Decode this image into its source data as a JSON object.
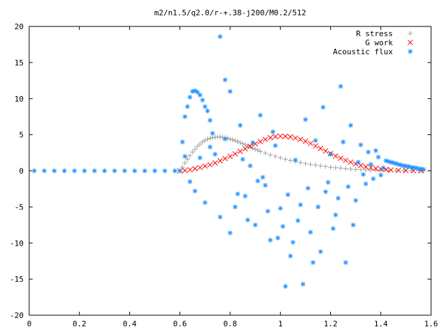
{
  "chart_data": {
    "type": "scatter",
    "title": "m2/n1.5/q2.0/r-+.38-j200/M0.2/512",
    "xlim": [
      0,
      1.6
    ],
    "ylim": [
      -20,
      20
    ],
    "x_ticks": [
      0,
      0.2,
      0.4,
      0.6,
      0.8,
      1,
      1.2,
      1.4,
      1.6
    ],
    "y_ticks": [
      -20,
      -15,
      -10,
      -5,
      0,
      5,
      10,
      15,
      20
    ],
    "grid": false,
    "legend_position": "top-right",
    "series": [
      {
        "name": "R stress",
        "marker": "plus",
        "color": "#a0a0a0",
        "points": [
          [
            0.61,
            0.5
          ],
          [
            0.62,
            1.1
          ],
          [
            0.63,
            1.6
          ],
          [
            0.64,
            2.1
          ],
          [
            0.65,
            2.6
          ],
          [
            0.66,
            3.0
          ],
          [
            0.67,
            3.4
          ],
          [
            0.68,
            3.7
          ],
          [
            0.69,
            4.0
          ],
          [
            0.7,
            4.2
          ],
          [
            0.71,
            4.4
          ],
          [
            0.72,
            4.5
          ],
          [
            0.73,
            4.6
          ],
          [
            0.74,
            4.65
          ],
          [
            0.75,
            4.7
          ],
          [
            0.76,
            4.7
          ],
          [
            0.77,
            4.65
          ],
          [
            0.78,
            4.6
          ],
          [
            0.79,
            4.5
          ],
          [
            0.8,
            4.4
          ],
          [
            0.81,
            4.3
          ],
          [
            0.82,
            4.2
          ],
          [
            0.83,
            4.05
          ],
          [
            0.84,
            3.9
          ],
          [
            0.85,
            3.75
          ],
          [
            0.86,
            3.6
          ],
          [
            0.87,
            3.45
          ],
          [
            0.88,
            3.3
          ],
          [
            0.89,
            3.15
          ],
          [
            0.9,
            3.0
          ],
          [
            0.91,
            2.85
          ],
          [
            0.92,
            2.7
          ],
          [
            0.94,
            2.45
          ],
          [
            0.96,
            2.2
          ],
          [
            0.98,
            2.0
          ],
          [
            1.0,
            1.8
          ],
          [
            1.02,
            1.6
          ],
          [
            1.04,
            1.45
          ],
          [
            1.06,
            1.3
          ],
          [
            1.08,
            1.15
          ],
          [
            1.1,
            1.0
          ],
          [
            1.12,
            0.9
          ],
          [
            1.14,
            0.8
          ],
          [
            1.16,
            0.7
          ],
          [
            1.18,
            0.6
          ],
          [
            1.2,
            0.5
          ],
          [
            1.22,
            0.43
          ],
          [
            1.24,
            0.37
          ],
          [
            1.26,
            0.3
          ],
          [
            1.28,
            0.25
          ],
          [
            1.3,
            0.2
          ],
          [
            1.32,
            0.17
          ],
          [
            1.34,
            0.13
          ],
          [
            1.36,
            0.1
          ],
          [
            1.38,
            0.08
          ],
          [
            1.4,
            0.06
          ],
          [
            1.43,
            0.04
          ],
          [
            1.46,
            0.03
          ],
          [
            1.49,
            0.02
          ],
          [
            1.52,
            0.01
          ],
          [
            1.55,
            0.01
          ],
          [
            1.57,
            0
          ]
        ]
      },
      {
        "name": "G work",
        "marker": "cross",
        "color": "#ff0000",
        "points": [
          [
            0.6,
            0
          ],
          [
            0.62,
            0.05
          ],
          [
            0.64,
            0.15
          ],
          [
            0.66,
            0.3
          ],
          [
            0.68,
            0.45
          ],
          [
            0.7,
            0.65
          ],
          [
            0.72,
            0.85
          ],
          [
            0.74,
            1.1
          ],
          [
            0.76,
            1.4
          ],
          [
            0.78,
            1.7
          ],
          [
            0.8,
            2.0
          ],
          [
            0.82,
            2.35
          ],
          [
            0.84,
            2.7
          ],
          [
            0.86,
            3.05
          ],
          [
            0.88,
            3.4
          ],
          [
            0.9,
            3.75
          ],
          [
            0.92,
            4.05
          ],
          [
            0.94,
            4.35
          ],
          [
            0.96,
            4.6
          ],
          [
            0.98,
            4.75
          ],
          [
            1.0,
            4.8
          ],
          [
            1.02,
            4.78
          ],
          [
            1.04,
            4.7
          ],
          [
            1.06,
            4.55
          ],
          [
            1.08,
            4.35
          ],
          [
            1.1,
            4.1
          ],
          [
            1.12,
            3.8
          ],
          [
            1.14,
            3.45
          ],
          [
            1.16,
            3.1
          ],
          [
            1.18,
            2.75
          ],
          [
            1.2,
            2.4
          ],
          [
            1.22,
            2.05
          ],
          [
            1.24,
            1.75
          ],
          [
            1.26,
            1.45
          ],
          [
            1.28,
            1.2
          ],
          [
            1.3,
            0.95
          ],
          [
            1.32,
            0.75
          ],
          [
            1.34,
            0.58
          ],
          [
            1.36,
            0.45
          ],
          [
            1.38,
            0.35
          ],
          [
            1.4,
            0.25
          ],
          [
            1.42,
            0.18
          ],
          [
            1.44,
            0.12
          ],
          [
            1.47,
            0.07
          ],
          [
            1.5,
            0.04
          ],
          [
            1.53,
            0.02
          ],
          [
            1.56,
            0.01
          ]
        ]
      },
      {
        "name": "Acoustic flux",
        "marker": "star",
        "color": "#1e90ff",
        "points": [
          [
            0.02,
            0
          ],
          [
            0.06,
            0
          ],
          [
            0.1,
            0
          ],
          [
            0.14,
            0
          ],
          [
            0.18,
            0
          ],
          [
            0.22,
            0
          ],
          [
            0.26,
            0
          ],
          [
            0.3,
            0
          ],
          [
            0.34,
            0
          ],
          [
            0.38,
            0
          ],
          [
            0.42,
            0
          ],
          [
            0.46,
            0
          ],
          [
            0.5,
            0
          ],
          [
            0.54,
            0
          ],
          [
            0.58,
            0
          ],
          [
            0.6,
            0
          ],
          [
            0.61,
            4.0
          ],
          [
            0.62,
            7.5
          ],
          [
            0.63,
            8.9
          ],
          [
            0.64,
            10.2
          ],
          [
            0.65,
            11.0
          ],
          [
            0.66,
            11.1
          ],
          [
            0.67,
            10.9
          ],
          [
            0.68,
            10.5
          ],
          [
            0.69,
            9.8
          ],
          [
            0.7,
            8.9
          ],
          [
            0.71,
            8.3
          ],
          [
            0.72,
            7.0
          ],
          [
            0.73,
            5.2
          ],
          [
            0.76,
            18.6
          ],
          [
            0.78,
            12.6
          ],
          [
            0.8,
            11.0
          ],
          [
            0.62,
            2.0
          ],
          [
            0.64,
            -1.5
          ],
          [
            0.66,
            -2.8
          ],
          [
            0.68,
            1.8
          ],
          [
            0.7,
            -4.4
          ],
          [
            0.72,
            3.3
          ],
          [
            0.74,
            2.3
          ],
          [
            0.76,
            -6.4
          ],
          [
            0.78,
            4.4
          ],
          [
            0.8,
            -8.6
          ],
          [
            0.82,
            -5.0
          ],
          [
            0.84,
            6.3
          ],
          [
            0.86,
            -3.5
          ],
          [
            0.88,
            0.7
          ],
          [
            0.9,
            -7.5
          ],
          [
            0.92,
            7.7
          ],
          [
            0.94,
            -2.0
          ],
          [
            0.96,
            -9.6
          ],
          [
            0.98,
            3.5
          ],
          [
            1.0,
            -5.2
          ],
          [
            1.02,
            -16.0
          ],
          [
            1.04,
            -11.8
          ],
          [
            1.06,
            1.5
          ],
          [
            1.08,
            -4.7
          ],
          [
            1.1,
            7.1
          ],
          [
            1.12,
            -8.5
          ],
          [
            1.14,
            4.2
          ],
          [
            1.16,
            -11.2
          ],
          [
            1.18,
            -2.9
          ],
          [
            1.2,
            2.3
          ],
          [
            1.22,
            -6.1
          ],
          [
            1.24,
            11.7
          ],
          [
            1.26,
            -12.7
          ],
          [
            1.28,
            6.3
          ],
          [
            1.3,
            -4.1
          ],
          [
            1.32,
            3.6
          ],
          [
            1.34,
            -1.8
          ],
          [
            1.36,
            0.9
          ],
          [
            1.38,
            2.8
          ],
          [
            1.4,
            -0.6
          ],
          [
            0.83,
            -3.2
          ],
          [
            0.87,
            -6.8
          ],
          [
            0.91,
            -1.4
          ],
          [
            0.95,
            -5.6
          ],
          [
            0.99,
            -9.3
          ],
          [
            1.03,
            -3.3
          ],
          [
            1.07,
            -6.9
          ],
          [
            1.11,
            -2.4
          ],
          [
            1.15,
            -5.0
          ],
          [
            1.19,
            -1.6
          ],
          [
            1.23,
            -3.8
          ],
          [
            1.27,
            -2.2
          ],
          [
            0.85,
            1.6
          ],
          [
            0.89,
            3.9
          ],
          [
            0.93,
            -0.9
          ],
          [
            0.97,
            5.4
          ],
          [
            1.01,
            -7.7
          ],
          [
            1.05,
            -9.9
          ],
          [
            1.09,
            -15.7
          ],
          [
            1.13,
            -12.7
          ],
          [
            1.17,
            8.8
          ],
          [
            1.21,
            -8.0
          ],
          [
            1.25,
            4.0
          ],
          [
            1.29,
            -7.5
          ],
          [
            1.31,
            1.2
          ],
          [
            1.33,
            -0.5
          ],
          [
            1.35,
            2.6
          ],
          [
            1.37,
            -1.1
          ],
          [
            1.39,
            1.9
          ],
          [
            1.41,
            0.4
          ],
          [
            1.42,
            1.4
          ],
          [
            1.43,
            1.3
          ],
          [
            1.44,
            1.2
          ],
          [
            1.45,
            1.1
          ],
          [
            1.46,
            1.0
          ],
          [
            1.47,
            0.9
          ],
          [
            1.48,
            0.8
          ],
          [
            1.49,
            0.7
          ],
          [
            1.5,
            0.65
          ],
          [
            1.51,
            0.6
          ],
          [
            1.52,
            0.5
          ],
          [
            1.53,
            0.45
          ],
          [
            1.54,
            0.4
          ],
          [
            1.55,
            0.3
          ],
          [
            1.56,
            0.25
          ],
          [
            1.57,
            0.2
          ]
        ]
      }
    ]
  }
}
